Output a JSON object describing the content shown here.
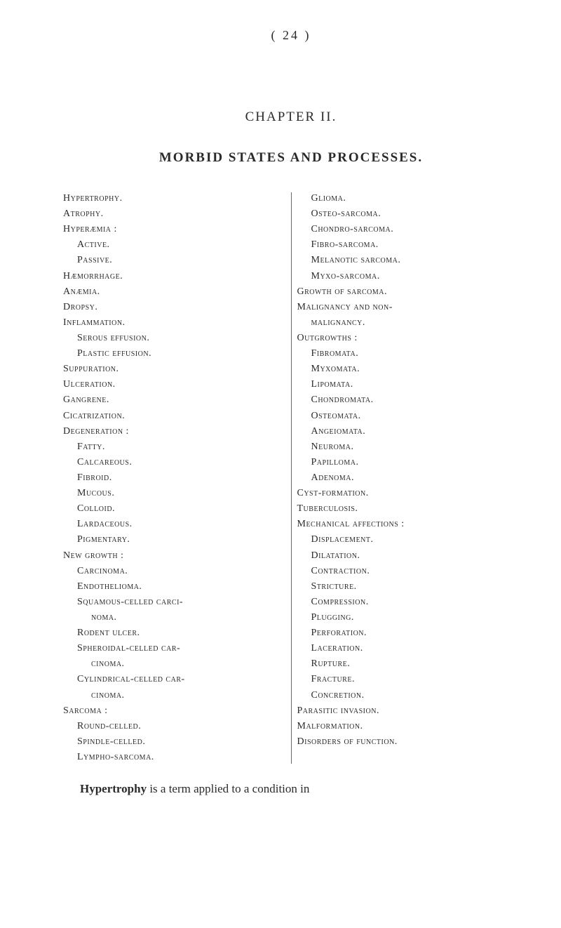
{
  "page_number": "( 24 )",
  "chapter_heading": "CHAPTER II.",
  "title": "MORBID STATES AND PROCESSES.",
  "left_column": [
    {
      "lvl": 0,
      "text": "Hypertrophy."
    },
    {
      "lvl": 0,
      "text": "Atrophy."
    },
    {
      "lvl": 0,
      "text": "Hyperæmia :"
    },
    {
      "lvl": 1,
      "text": "Active."
    },
    {
      "lvl": 1,
      "text": "Passive."
    },
    {
      "lvl": 0,
      "text": "Hæmorrhage."
    },
    {
      "lvl": 0,
      "text": "Anæmia."
    },
    {
      "lvl": 0,
      "text": "Dropsy."
    },
    {
      "lvl": 0,
      "text": "Inflammation."
    },
    {
      "lvl": 1,
      "text": "Serous effusion."
    },
    {
      "lvl": 1,
      "text": "Plastic effusion."
    },
    {
      "lvl": 0,
      "text": "Suppuration."
    },
    {
      "lvl": 0,
      "text": "Ulceration."
    },
    {
      "lvl": 0,
      "text": "Gangrene."
    },
    {
      "lvl": 0,
      "text": "Cicatrization."
    },
    {
      "lvl": 0,
      "text": "Degeneration :"
    },
    {
      "lvl": 1,
      "text": "Fatty."
    },
    {
      "lvl": 1,
      "text": "Calcareous."
    },
    {
      "lvl": 1,
      "text": "Fibroid."
    },
    {
      "lvl": 1,
      "text": "Mucous."
    },
    {
      "lvl": 1,
      "text": "Colloid."
    },
    {
      "lvl": 1,
      "text": "Lardaceous."
    },
    {
      "lvl": 1,
      "text": "Pigmentary."
    },
    {
      "lvl": 0,
      "text": "New growth :"
    },
    {
      "lvl": 1,
      "text": "Carcinoma."
    },
    {
      "lvl": 1,
      "text": "Endothelioma."
    },
    {
      "lvl": 1,
      "text": "Squamous-celled carci-"
    },
    {
      "lvl": 2,
      "text": "noma."
    },
    {
      "lvl": 1,
      "text": "Rodent ulcer."
    },
    {
      "lvl": 1,
      "text": "Spheroidal-celled car-"
    },
    {
      "lvl": 2,
      "text": "cinoma."
    },
    {
      "lvl": 1,
      "text": "Cylindrical-celled car-"
    },
    {
      "lvl": 2,
      "text": "cinoma."
    },
    {
      "lvl": 0,
      "text": "Sarcoma :"
    },
    {
      "lvl": 1,
      "text": "Round-celled."
    },
    {
      "lvl": 1,
      "text": "Spindle-celled."
    },
    {
      "lvl": 1,
      "text": "Lympho-sarcoma."
    }
  ],
  "right_column": [
    {
      "lvl": 1,
      "text": "Glioma."
    },
    {
      "lvl": 1,
      "text": "Osteo-sarcoma."
    },
    {
      "lvl": 1,
      "text": "Chondro-sarcoma."
    },
    {
      "lvl": 1,
      "text": "Fibro-sarcoma."
    },
    {
      "lvl": 1,
      "text": "Melanotic sarcoma."
    },
    {
      "lvl": 1,
      "text": "Myxo-sarcoma."
    },
    {
      "lvl": 0,
      "text": "Growth of sarcoma."
    },
    {
      "lvl": 0,
      "text": "Malignancy and non-"
    },
    {
      "lvl": 1,
      "text": "malignancy."
    },
    {
      "lvl": 0,
      "text": "Outgrowths :"
    },
    {
      "lvl": 1,
      "text": "Fibromata."
    },
    {
      "lvl": 1,
      "text": "Myxomata."
    },
    {
      "lvl": 1,
      "text": "Lipomata."
    },
    {
      "lvl": 1,
      "text": "Chondromata."
    },
    {
      "lvl": 1,
      "text": "Osteomata."
    },
    {
      "lvl": 1,
      "text": "Angeiomata."
    },
    {
      "lvl": 1,
      "text": "Neuroma."
    },
    {
      "lvl": 1,
      "text": "Papilloma."
    },
    {
      "lvl": 1,
      "text": "Adenoma."
    },
    {
      "lvl": 0,
      "text": "Cyst-formation."
    },
    {
      "lvl": 0,
      "text": "Tuberculosis."
    },
    {
      "lvl": 0,
      "text": "Mechanical affections :"
    },
    {
      "lvl": 1,
      "text": "Displacement."
    },
    {
      "lvl": 1,
      "text": "Dilatation."
    },
    {
      "lvl": 1,
      "text": "Contraction."
    },
    {
      "lvl": 1,
      "text": "Stricture."
    },
    {
      "lvl": 1,
      "text": "Compression."
    },
    {
      "lvl": 1,
      "text": "Plugging."
    },
    {
      "lvl": 1,
      "text": "Perforation."
    },
    {
      "lvl": 1,
      "text": "Laceration."
    },
    {
      "lvl": 1,
      "text": "Rupture."
    },
    {
      "lvl": 1,
      "text": "Fracture."
    },
    {
      "lvl": 1,
      "text": "Concretion."
    },
    {
      "lvl": 0,
      "text": "Parasitic invasion."
    },
    {
      "lvl": 0,
      "text": "Malformation."
    },
    {
      "lvl": 0,
      "text": "Disorders of function."
    }
  ],
  "body_bold": "Hypertrophy",
  "body_rest": " is a term applied to a condition in"
}
